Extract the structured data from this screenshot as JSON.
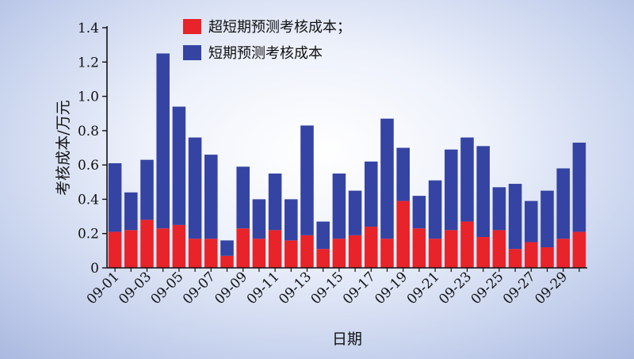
{
  "chart_data": {
    "type": "bar",
    "stacked": true,
    "title": "",
    "xlabel": "日期",
    "ylabel": "考核成本/万元",
    "ylim": [
      0,
      1.4
    ],
    "yticks": [
      "0",
      "0.2",
      "0.4",
      "0.6",
      "0.8",
      "1.0",
      "1.2",
      "1.4"
    ],
    "ytick_values": [
      0,
      0.2,
      0.4,
      0.6,
      0.8,
      1.0,
      1.2,
      1.4
    ],
    "categories": [
      "09-01",
      "09-02",
      "09-03",
      "09-04",
      "09-05",
      "09-06",
      "09-07",
      "09-08",
      "09-09",
      "09-10",
      "09-11",
      "09-12",
      "09-13",
      "09-14",
      "09-15",
      "09-16",
      "09-17",
      "09-18",
      "09-19",
      "09-20",
      "09-21",
      "09-22",
      "09-23",
      "09-24",
      "09-25",
      "09-26",
      "09-27",
      "09-28",
      "09-29",
      "09-30"
    ],
    "xtick_labels": [
      "09-01",
      "09-03",
      "09-05",
      "09-07",
      "09-09",
      "09-11",
      "09-13",
      "09-15",
      "09-17",
      "09-19",
      "09-21",
      "09-23",
      "09-25",
      "09-27",
      "09-29"
    ],
    "legend_position": "top-center",
    "series": [
      {
        "name": "超短期预测考核成本；",
        "color": "#e8232a",
        "values": [
          0.21,
          0.22,
          0.28,
          0.23,
          0.25,
          0.17,
          0.17,
          0.07,
          0.23,
          0.17,
          0.22,
          0.16,
          0.19,
          0.11,
          0.17,
          0.19,
          0.24,
          0.17,
          0.39,
          0.23,
          0.17,
          0.22,
          0.27,
          0.18,
          0.22,
          0.11,
          0.15,
          0.12,
          0.17,
          0.21
        ]
      },
      {
        "name": "短期预测考核成本",
        "color": "#3544a3",
        "values": [
          0.4,
          0.22,
          0.35,
          1.02,
          0.69,
          0.59,
          0.49,
          0.09,
          0.36,
          0.23,
          0.33,
          0.24,
          0.64,
          0.16,
          0.38,
          0.26,
          0.38,
          0.7,
          0.31,
          0.19,
          0.34,
          0.47,
          0.49,
          0.53,
          0.25,
          0.38,
          0.24,
          0.33,
          0.41,
          0.52
        ]
      }
    ]
  }
}
